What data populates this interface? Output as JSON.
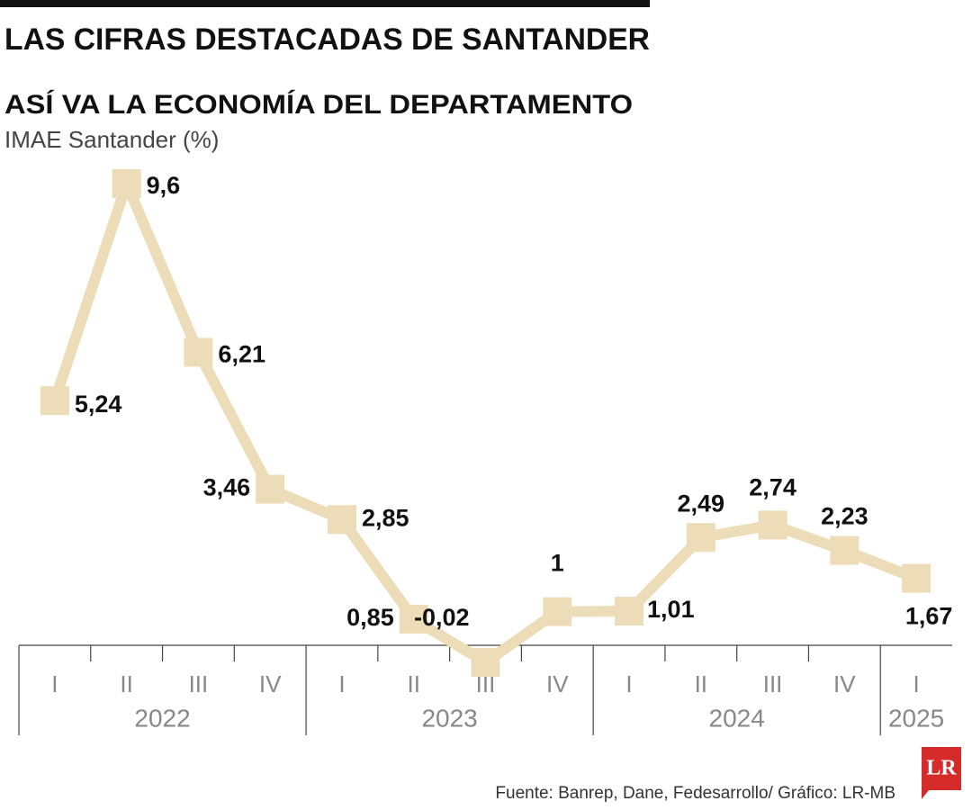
{
  "chart_data": {
    "type": "line",
    "title": "LAS CIFRAS DESTACADAS DE SANTANDER",
    "subtitle": "ASÍ VA LA ECONOMÍA DEL DEPARTAMENTO",
    "y_label": "IMAE Santander (%)",
    "categories": [
      "I",
      "II",
      "III",
      "IV",
      "I",
      "II",
      "III",
      "IV",
      "I",
      "II",
      "III",
      "IV",
      "I"
    ],
    "x_groups": [
      {
        "label": "2022",
        "size": 4
      },
      {
        "label": "2023",
        "size": 4
      },
      {
        "label": "2024",
        "size": 4
      },
      {
        "label": "2025",
        "size": 1
      }
    ],
    "series": [
      {
        "name": "IMAE Santander",
        "color": "#eddcb8",
        "values": [
          5.24,
          9.6,
          6.21,
          3.46,
          2.85,
          0.85,
          -0.02,
          1,
          1.01,
          2.49,
          2.74,
          2.23,
          1.67
        ],
        "value_labels": [
          "5,24",
          "9,6",
          "6,21",
          "3,46",
          "2,85",
          "0,85",
          "-0,02",
          "1",
          "1,01",
          "2,49",
          "2,74",
          "2,23",
          "1,67"
        ]
      }
    ],
    "source": "Fuente: Banrep, Dane, Fedesarrollo/ Gráfico: LR-MB",
    "logo": "LR"
  }
}
